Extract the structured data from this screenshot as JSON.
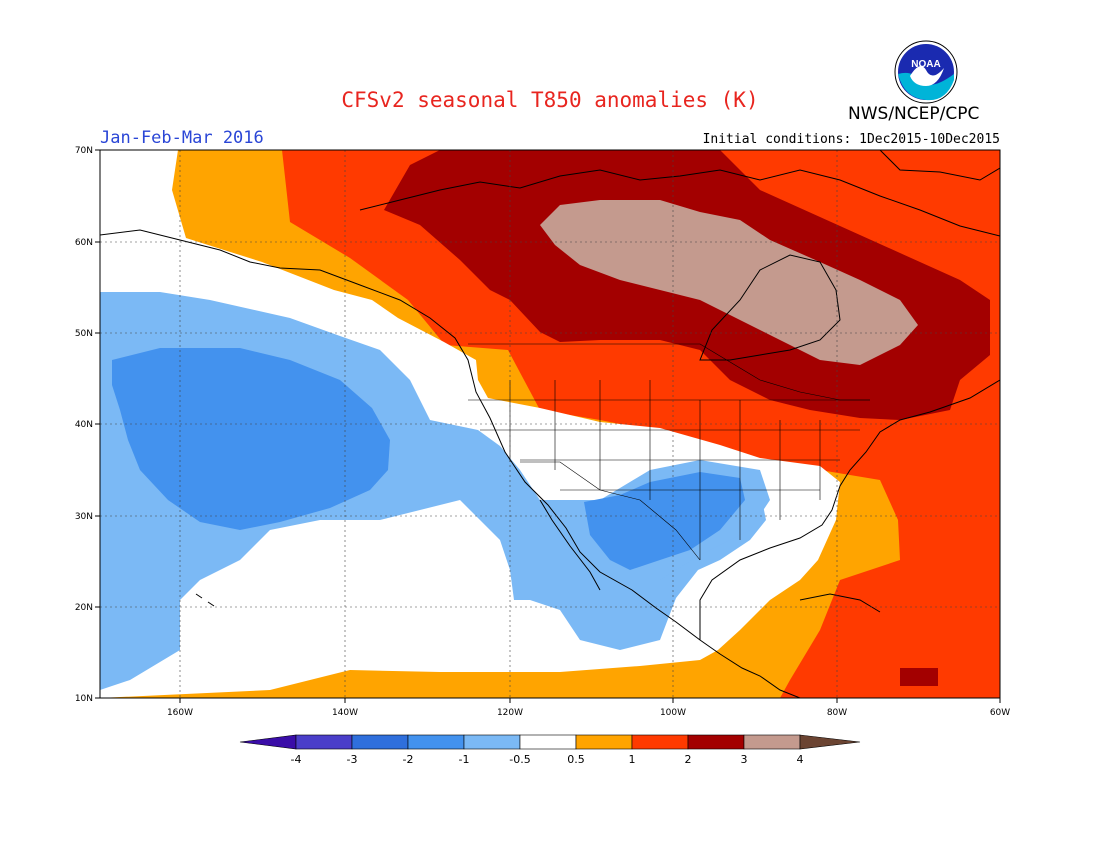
{
  "header": {
    "title": "CFSv2 seasonal T850 anomalies (K)",
    "agency": "NWS/NCEP/CPC",
    "logo_text": "NOAA",
    "season": "Jan-Feb-Mar 2016",
    "initial_conditions": "Initial conditions: 1Dec2015-10Dec2015"
  },
  "axes": {
    "lon_labels": [
      "160W",
      "140W",
      "120W",
      "100W",
      "80W",
      "60W"
    ],
    "lat_labels": [
      "70N",
      "60N",
      "50N",
      "40N",
      "30N",
      "20N",
      "10N"
    ]
  },
  "colorbar": {
    "tick_labels": [
      "-4",
      "-3",
      "-2",
      "-1",
      "-0.5",
      "0.5",
      "1",
      "2",
      "3",
      "4"
    ],
    "colors": [
      "#3a0da8",
      "#4a3ec9",
      "#2f6fdc",
      "#4392ee",
      "#7bb9f5",
      "#ffffff",
      "#ffa400",
      "#ff3a00",
      "#a30000",
      "#c49a8e",
      "#6b4432"
    ]
  },
  "colors": {
    "title": "#e8251f",
    "season": "#2a46d6",
    "ocean_shade": "#ffffff"
  }
}
